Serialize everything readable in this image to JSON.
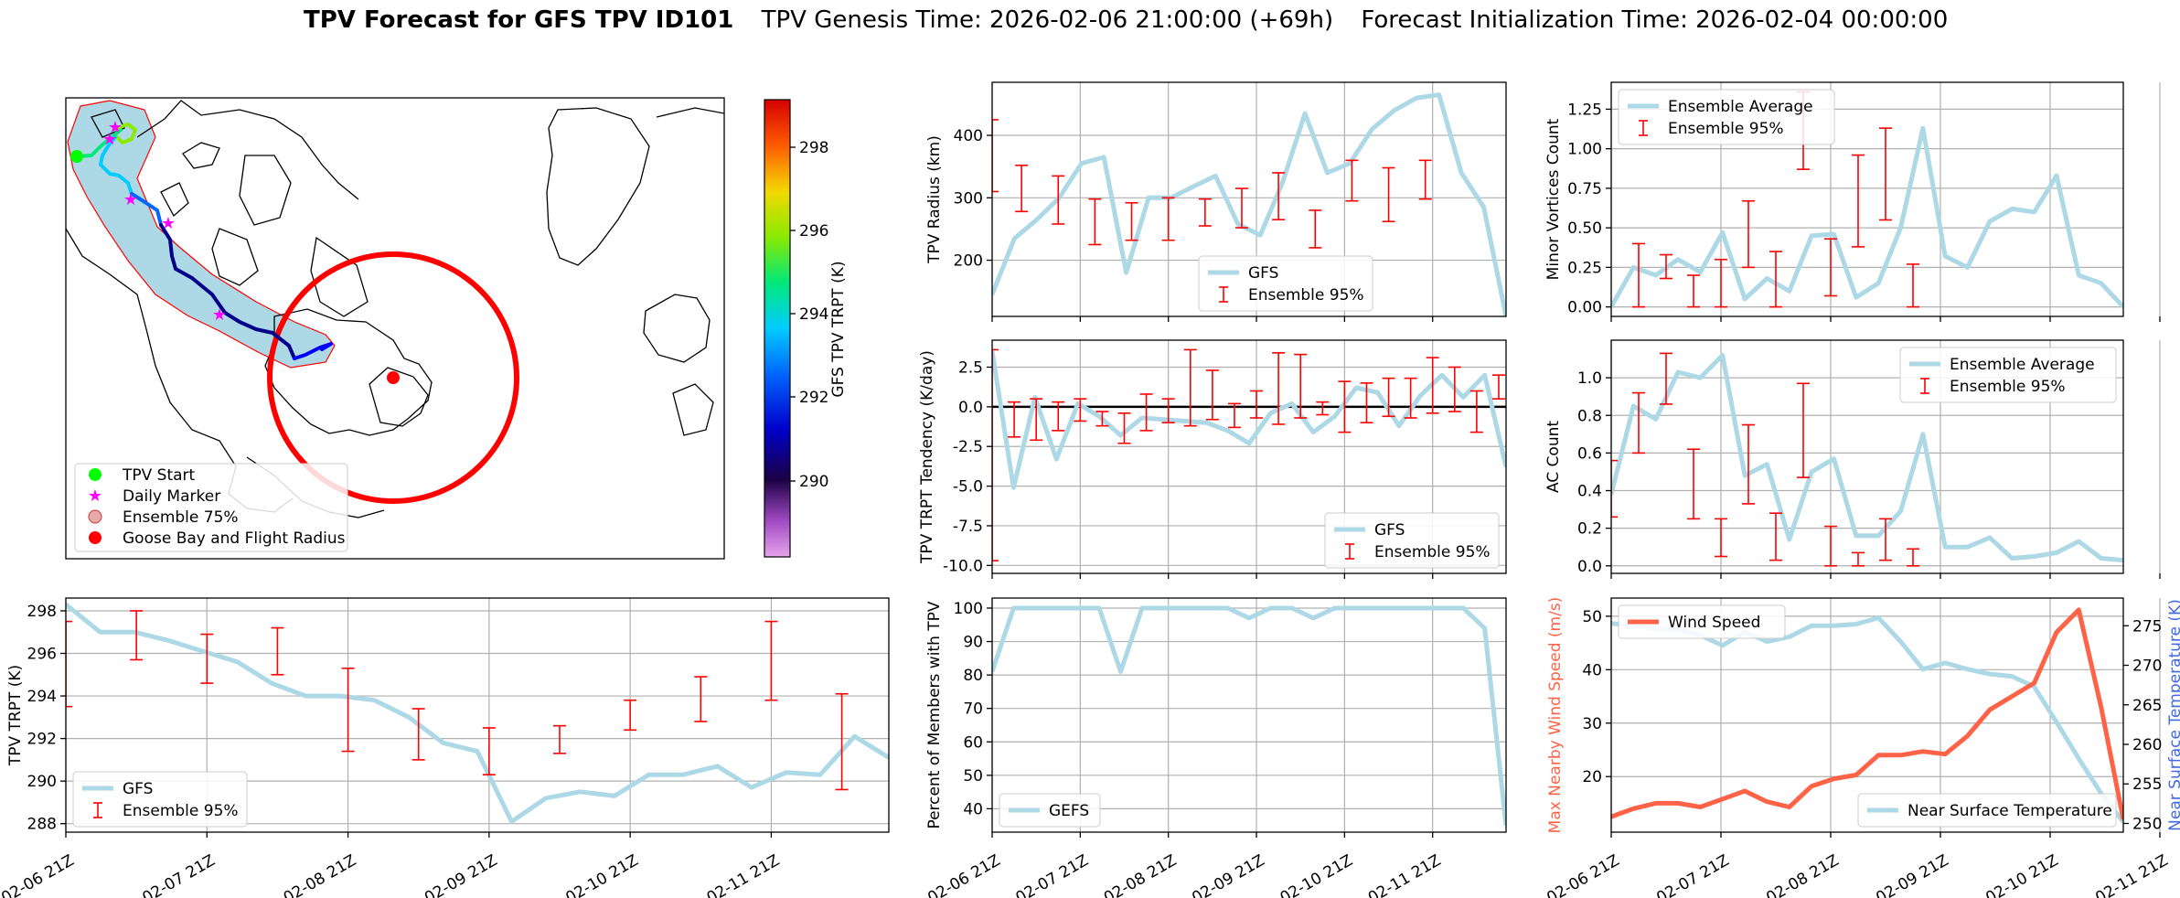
{
  "suptitle": {
    "bold": "TPV Forecast for GFS TPV ID101",
    "genesis": "TPV Genesis Time: 2026-02-06 21:00:00 (+69h)",
    "init": "Forecast Initialization Time: 2026-02-04 00:00:00"
  },
  "colors": {
    "gfs_line": "#add8e6",
    "ensemble_err": "#ff0000",
    "wind": "#ff6347",
    "temp_axis": "#4169e1",
    "map_fill": "#add8e6",
    "flight_radius": "#ff0000",
    "track_dark": "#00008b",
    "track_mid": "#0000ff",
    "start_marker": "#00ff00",
    "daily_marker": "#ff00ff"
  },
  "time_ticks": [
    "02-06 21Z",
    "02-07 21Z",
    "02-08 21Z",
    "02-09 21Z",
    "02-10 21Z",
    "02-11 21Z"
  ],
  "map": {
    "colorbar_label": "GFS TPV TRPT (K)",
    "colorbar_ticks": [
      "290",
      "292",
      "294",
      "296",
      "298"
    ],
    "legend": [
      "TPV Start",
      "Daily Marker",
      "Ensemble 75%",
      "Goose Bay and Flight Radius"
    ]
  },
  "chart_data": [
    {
      "id": "radius",
      "type": "line",
      "title": "",
      "xlabel": "",
      "ylabel": "TPV Radius (km)",
      "x": [
        0,
        1,
        2,
        3,
        4,
        5,
        6,
        7,
        8,
        9,
        10,
        11,
        12,
        13,
        14,
        15,
        16,
        17,
        18,
        19,
        20,
        21,
        22,
        23,
        24,
        25,
        26,
        27,
        28
      ],
      "ylim": [
        110,
        485
      ],
      "yticks": [
        200,
        300,
        400
      ],
      "gfs": [
        145,
        235,
        265,
        300,
        355,
        365,
        180,
        300,
        300,
        318,
        335,
        258,
        240,
        325,
        435,
        340,
        355,
        410,
        440,
        460,
        465,
        340,
        285,
        110
      ],
      "err": [
        [
          0,
          310,
          425
        ],
        [
          4,
          278,
          352
        ],
        [
          9,
          258,
          335
        ],
        [
          14,
          225,
          298
        ],
        [
          19,
          232,
          292
        ],
        [
          24,
          232,
          300
        ],
        [
          29,
          255,
          298
        ],
        [
          34,
          252,
          315
        ],
        [
          39,
          265,
          340
        ],
        [
          44,
          220,
          280
        ],
        [
          49,
          295,
          360
        ],
        [
          54,
          262,
          348
        ],
        [
          59,
          298,
          360
        ]
      ],
      "legend": [
        "GFS",
        "Ensemble 95%"
      ],
      "legend_pos": "lower-center"
    },
    {
      "id": "tendency",
      "type": "line",
      "ylabel": "TPV TRPT Tendency (K/day)",
      "ylim": [
        -10.5,
        4.2
      ],
      "yticks": [
        -10.0,
        -7.5,
        -5.0,
        -2.5,
        0.0,
        2.5
      ],
      "gfs": [
        3.5,
        -5.1,
        0.6,
        -3.3,
        0.2,
        -0.6,
        -1.8,
        -0.7,
        -0.8,
        -0.9,
        -1.0,
        -1.5,
        -2.3,
        -0.4,
        0.2,
        -1.6,
        -0.6,
        1.2,
        0.9,
        -1.2,
        0.7,
        2.0,
        0.6,
        2.0,
        -3.8
      ],
      "err": [
        [
          0,
          -9.7,
          3.6
        ],
        [
          3,
          -1.9,
          0.3
        ],
        [
          6,
          -2.1,
          0.5
        ],
        [
          9,
          -1.5,
          0.3
        ],
        [
          12,
          -0.9,
          0.5
        ],
        [
          15,
          -1.2,
          -0.3
        ],
        [
          18,
          -2.3,
          -0.4
        ],
        [
          21,
          -1.5,
          0.8
        ],
        [
          24,
          -1.0,
          0.5
        ],
        [
          27,
          -1.2,
          3.6
        ],
        [
          30,
          -0.8,
          2.3
        ],
        [
          33,
          -1.3,
          0.2
        ],
        [
          36,
          -0.7,
          1.0
        ],
        [
          39,
          -1.1,
          3.4
        ],
        [
          42,
          -0.7,
          3.3
        ],
        [
          45,
          -0.5,
          0.3
        ],
        [
          48,
          -1.6,
          1.6
        ],
        [
          51,
          -1.0,
          1.5
        ],
        [
          54,
          -0.6,
          1.8
        ],
        [
          57,
          -0.7,
          1.8
        ],
        [
          60,
          -0.4,
          3.1
        ],
        [
          63,
          -0.3,
          2.5
        ],
        [
          66,
          -1.6,
          1.0
        ],
        [
          69,
          0.5,
          2.0
        ]
      ],
      "hline": 0,
      "legend": [
        "GFS",
        "Ensemble 95%"
      ],
      "legend_pos": "lower-right"
    },
    {
      "id": "trpt",
      "type": "line",
      "ylabel": "TPV TRPT (K)",
      "ylim": [
        287.6,
        298.6
      ],
      "yticks": [
        288,
        290,
        292,
        294,
        296,
        298
      ],
      "gfs": [
        298.3,
        297.0,
        297.0,
        296.6,
        296.1,
        295.6,
        294.6,
        294.0,
        294.0,
        293.8,
        293.0,
        291.8,
        291.4,
        288.1,
        289.2,
        289.5,
        289.3,
        290.3,
        290.3,
        290.7,
        289.7,
        290.4,
        290.3,
        292.1,
        291.1
      ],
      "err": [
        [
          0,
          293.5,
          297.5
        ],
        [
          6,
          295.7,
          298.0
        ],
        [
          12,
          294.6,
          296.9
        ],
        [
          18,
          295.0,
          297.2
        ],
        [
          24,
          291.4,
          295.3
        ],
        [
          30,
          291.0,
          293.4
        ],
        [
          36,
          290.3,
          292.5
        ],
        [
          42,
          291.3,
          292.6
        ],
        [
          48,
          292.4,
          293.8
        ],
        [
          54,
          292.8,
          294.9
        ],
        [
          60,
          293.8,
          297.5
        ],
        [
          66,
          289.6,
          294.1
        ]
      ],
      "legend": [
        "GFS",
        "Ensemble 95%"
      ],
      "legend_pos": "lower-left"
    },
    {
      "id": "percent",
      "type": "line",
      "ylabel": "Percent of Members with TPV",
      "ylim": [
        33,
        103
      ],
      "yticks": [
        40,
        50,
        60,
        70,
        80,
        90,
        100
      ],
      "gfs": [
        81,
        100,
        100,
        100,
        100,
        100,
        81,
        100,
        100,
        100,
        100,
        100,
        97,
        100,
        100,
        97,
        100,
        100,
        100,
        100,
        100,
        100,
        100,
        94,
        35
      ],
      "legend": [
        "GEFS"
      ],
      "legend_pos": "lower-left"
    },
    {
      "id": "minor",
      "type": "line",
      "ylabel": "Minor Vortices Count",
      "ylim": [
        -0.06,
        1.42
      ],
      "yticks": [
        0.0,
        0.25,
        0.5,
        0.75,
        1.0,
        1.25
      ],
      "avg": [
        0.0,
        0.25,
        0.2,
        0.3,
        0.22,
        0.47,
        0.05,
        0.18,
        0.1,
        0.45,
        0.46,
        0.06,
        0.15,
        0.5,
        1.13,
        0.32,
        0.25,
        0.54,
        0.62,
        0.6,
        0.83,
        0.2,
        0.15,
        0.0
      ],
      "err": [
        [
          3,
          0.0,
          0.4
        ],
        [
          6,
          0.18,
          0.33
        ],
        [
          9,
          0.0,
          0.2
        ],
        [
          12,
          0.0,
          0.3
        ],
        [
          15,
          0.25,
          0.67
        ],
        [
          18,
          0.0,
          0.35
        ],
        [
          21,
          0.87,
          1.36
        ],
        [
          24,
          0.07,
          0.43
        ],
        [
          27,
          0.38,
          0.96
        ],
        [
          30,
          0.55,
          1.13
        ],
        [
          33,
          0.0,
          0.27
        ]
      ],
      "legend": [
        "Ensemble Average",
        "Ensemble 95%"
      ],
      "legend_pos": "upper-left"
    },
    {
      "id": "ac",
      "type": "line",
      "ylabel": "AC Count",
      "ylim": [
        -0.04,
        1.2
      ],
      "yticks": [
        0.0,
        0.2,
        0.4,
        0.6,
        0.8,
        1.0
      ],
      "avg": [
        0.38,
        0.85,
        0.78,
        1.03,
        1.0,
        1.12,
        0.48,
        0.54,
        0.14,
        0.5,
        0.57,
        0.16,
        0.16,
        0.29,
        0.7,
        0.1,
        0.1,
        0.15,
        0.04,
        0.05,
        0.07,
        0.13,
        0.04,
        0.03
      ],
      "err": [
        [
          0,
          0.26,
          0.56
        ],
        [
          3,
          0.6,
          0.92
        ],
        [
          6,
          0.86,
          1.13
        ],
        [
          9,
          0.25,
          0.62
        ],
        [
          12,
          0.05,
          0.25
        ],
        [
          15,
          0.33,
          0.75
        ],
        [
          18,
          0.03,
          0.28
        ],
        [
          21,
          0.47,
          0.97
        ],
        [
          24,
          0.0,
          0.21
        ],
        [
          27,
          0.0,
          0.07
        ],
        [
          30,
          0.03,
          0.25
        ],
        [
          33,
          0.0,
          0.09
        ]
      ],
      "legend": [
        "Ensemble Average",
        "Ensemble 95%"
      ],
      "legend_pos": "upper-right"
    },
    {
      "id": "wind_temp",
      "type": "line",
      "ylabel": "Max Nearby Wind Speed (m/s)",
      "ylabel2": "Near Surface Temperature (K)",
      "ylim": [
        9.6,
        53.4
      ],
      "yticks": [
        20,
        30,
        40,
        50
      ],
      "ylim2": [
        248.9,
        278.5
      ],
      "yticks2": [
        250,
        255,
        260,
        265,
        270,
        275
      ],
      "wind": [
        12.5,
        14,
        15,
        15,
        14.3,
        15.8,
        17.3,
        15.3,
        14.3,
        18.2,
        19.6,
        20.3,
        24,
        24,
        24.7,
        24.2,
        27.6,
        32.5,
        35,
        37.5,
        47,
        51.2,
        33,
        12
      ],
      "temp": [
        275.3,
        275.0,
        274.6,
        274.5,
        273.8,
        272.5,
        274.2,
        273.0,
        273.6,
        275.0,
        275.0,
        275.2,
        276.0,
        273.0,
        269.5,
        270.3,
        269.5,
        268.9,
        268.6,
        267.3,
        262.8,
        258.2,
        253.8,
        250.2
      ],
      "legend": [
        "Wind Speed"
      ],
      "legend2": [
        "Near Surface Temperature"
      ]
    }
  ]
}
